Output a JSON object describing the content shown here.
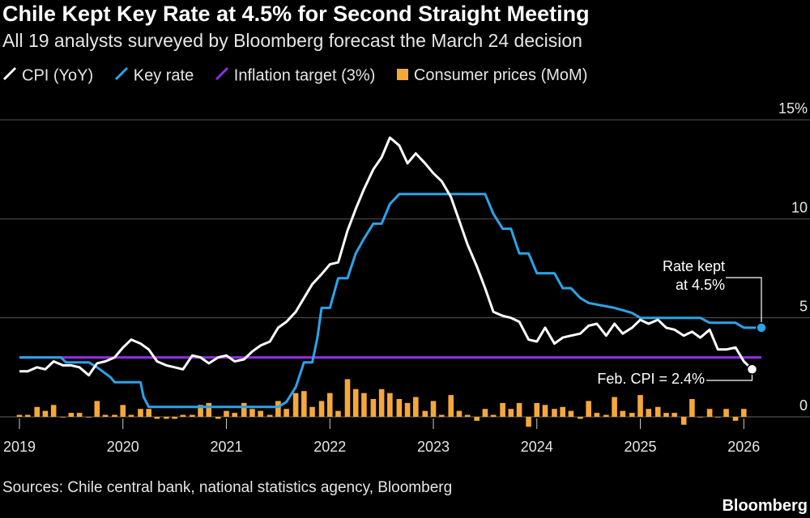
{
  "chart_data": {
    "type": "line",
    "title": "Chile Kept Key Rate at 4.5% for Second Straight Meeting",
    "subtitle": "All 19 analysts surveyed by Bloomberg forecast the March 24 decision",
    "legend": [
      {
        "name": "CPI (YoY)",
        "color": "#ffffff",
        "symbol": "line"
      },
      {
        "name": "Key rate",
        "color": "#2ba4e8",
        "symbol": "line"
      },
      {
        "name": "Inflation target (3%)",
        "color": "#8f2fe6",
        "symbol": "line"
      },
      {
        "name": "Consumer prices (MoM)",
        "color": "#f5a83a",
        "symbol": "square"
      }
    ],
    "x_ticks": [
      "2019",
      "2020",
      "2021",
      "2022",
      "2023",
      "2024",
      "2025",
      "2026"
    ],
    "y_ticks": [
      {
        "value": 0,
        "label": "0"
      },
      {
        "value": 5,
        "label": "5"
      },
      {
        "value": 10,
        "label": "10"
      },
      {
        "value": 15,
        "label": "15%"
      }
    ],
    "ylim": [
      -1.5,
      15
    ],
    "xlim": [
      2019.0,
      2026.3
    ],
    "series": [
      {
        "name": "CPI (YoY)",
        "color": "#ffffff",
        "points": [
          [
            2019.0,
            2.3
          ],
          [
            2019.08,
            2.3
          ],
          [
            2019.17,
            2.5
          ],
          [
            2019.25,
            2.4
          ],
          [
            2019.33,
            2.8
          ],
          [
            2019.42,
            2.6
          ],
          [
            2019.5,
            2.6
          ],
          [
            2019.58,
            2.5
          ],
          [
            2019.67,
            2.1
          ],
          [
            2019.75,
            2.7
          ],
          [
            2019.83,
            2.8
          ],
          [
            2019.92,
            3.0
          ],
          [
            2020.0,
            3.5
          ],
          [
            2020.08,
            3.9
          ],
          [
            2020.17,
            3.7
          ],
          [
            2020.25,
            3.4
          ],
          [
            2020.33,
            2.8
          ],
          [
            2020.42,
            2.6
          ],
          [
            2020.5,
            2.5
          ],
          [
            2020.58,
            2.4
          ],
          [
            2020.67,
            3.1
          ],
          [
            2020.75,
            3.0
          ],
          [
            2020.83,
            2.7
          ],
          [
            2020.92,
            3.0
          ],
          [
            2021.0,
            3.1
          ],
          [
            2021.08,
            2.8
          ],
          [
            2021.17,
            2.9
          ],
          [
            2021.25,
            3.3
          ],
          [
            2021.33,
            3.6
          ],
          [
            2021.42,
            3.8
          ],
          [
            2021.5,
            4.5
          ],
          [
            2021.58,
            4.8
          ],
          [
            2021.67,
            5.3
          ],
          [
            2021.75,
            6.0
          ],
          [
            2021.83,
            6.7
          ],
          [
            2021.92,
            7.2
          ],
          [
            2022.0,
            7.7
          ],
          [
            2022.08,
            7.8
          ],
          [
            2022.17,
            9.4
          ],
          [
            2022.25,
            10.5
          ],
          [
            2022.33,
            11.5
          ],
          [
            2022.42,
            12.5
          ],
          [
            2022.5,
            13.1
          ],
          [
            2022.58,
            14.1
          ],
          [
            2022.67,
            13.7
          ],
          [
            2022.75,
            12.8
          ],
          [
            2022.83,
            13.3
          ],
          [
            2022.92,
            12.8
          ],
          [
            2023.0,
            12.3
          ],
          [
            2023.08,
            11.9
          ],
          [
            2023.17,
            11.1
          ],
          [
            2023.25,
            9.9
          ],
          [
            2023.33,
            8.7
          ],
          [
            2023.42,
            7.6
          ],
          [
            2023.5,
            6.5
          ],
          [
            2023.58,
            5.3
          ],
          [
            2023.67,
            5.1
          ],
          [
            2023.75,
            5.0
          ],
          [
            2023.83,
            4.8
          ],
          [
            2023.92,
            3.9
          ],
          [
            2024.0,
            3.8
          ],
          [
            2024.08,
            4.5
          ],
          [
            2024.17,
            3.7
          ],
          [
            2024.25,
            4.0
          ],
          [
            2024.33,
            4.1
          ],
          [
            2024.42,
            4.2
          ],
          [
            2024.5,
            4.6
          ],
          [
            2024.58,
            4.7
          ],
          [
            2024.67,
            4.1
          ],
          [
            2024.75,
            4.7
          ],
          [
            2024.83,
            4.2
          ],
          [
            2024.92,
            4.5
          ],
          [
            2025.0,
            4.9
          ],
          [
            2025.08,
            4.7
          ],
          [
            2025.17,
            4.9
          ],
          [
            2025.25,
            4.5
          ],
          [
            2025.33,
            4.4
          ],
          [
            2025.42,
            4.1
          ],
          [
            2025.5,
            4.3
          ],
          [
            2025.58,
            4.0
          ],
          [
            2025.67,
            4.4
          ],
          [
            2025.75,
            3.4
          ],
          [
            2025.83,
            3.4
          ],
          [
            2025.92,
            3.5
          ],
          [
            2026.0,
            2.8
          ],
          [
            2026.08,
            2.4
          ]
        ]
      },
      {
        "name": "Key rate",
        "color": "#2ba4e8",
        "points": [
          [
            2019.0,
            3.0
          ],
          [
            2019.4,
            3.0
          ],
          [
            2019.45,
            2.75
          ],
          [
            2019.67,
            2.75
          ],
          [
            2019.75,
            2.5
          ],
          [
            2019.88,
            2.0
          ],
          [
            2019.92,
            1.75
          ],
          [
            2020.17,
            1.75
          ],
          [
            2020.2,
            1.0
          ],
          [
            2020.25,
            0.5
          ],
          [
            2021.5,
            0.5
          ],
          [
            2021.58,
            0.75
          ],
          [
            2021.67,
            1.5
          ],
          [
            2021.75,
            2.75
          ],
          [
            2021.83,
            2.75
          ],
          [
            2021.88,
            4.0
          ],
          [
            2021.92,
            5.5
          ],
          [
            2022.0,
            5.5
          ],
          [
            2022.08,
            7.0
          ],
          [
            2022.17,
            7.0
          ],
          [
            2022.25,
            8.25
          ],
          [
            2022.33,
            9.0
          ],
          [
            2022.42,
            9.75
          ],
          [
            2022.5,
            9.75
          ],
          [
            2022.58,
            10.75
          ],
          [
            2022.67,
            11.25
          ],
          [
            2023.5,
            11.25
          ],
          [
            2023.58,
            10.25
          ],
          [
            2023.67,
            9.5
          ],
          [
            2023.75,
            9.5
          ],
          [
            2023.83,
            8.25
          ],
          [
            2023.92,
            8.25
          ],
          [
            2024.0,
            7.25
          ],
          [
            2024.17,
            7.25
          ],
          [
            2024.25,
            6.5
          ],
          [
            2024.33,
            6.5
          ],
          [
            2024.42,
            6.0
          ],
          [
            2024.5,
            5.75
          ],
          [
            2024.75,
            5.5
          ],
          [
            2024.92,
            5.25
          ],
          [
            2025.0,
            5.0
          ],
          [
            2025.58,
            5.0
          ],
          [
            2025.67,
            4.75
          ],
          [
            2025.92,
            4.75
          ],
          [
            2026.0,
            4.5
          ],
          [
            2026.17,
            4.5
          ]
        ]
      },
      {
        "name": "Inflation target (3%)",
        "color": "#8f2fe6",
        "points": [
          [
            2019.0,
            3.0
          ],
          [
            2026.17,
            3.0
          ]
        ]
      }
    ],
    "bars": {
      "name": "Consumer prices (MoM)",
      "color": "#f5a83a",
      "points": [
        [
          2019.0,
          0.1
        ],
        [
          2019.08,
          0.1
        ],
        [
          2019.17,
          0.5
        ],
        [
          2019.25,
          0.3
        ],
        [
          2019.33,
          0.6
        ],
        [
          2019.42,
          0.0
        ],
        [
          2019.5,
          0.2
        ],
        [
          2019.58,
          0.2
        ],
        [
          2019.67,
          0.0
        ],
        [
          2019.75,
          0.8
        ],
        [
          2019.83,
          0.1
        ],
        [
          2019.92,
          0.1
        ],
        [
          2020.0,
          0.6
        ],
        [
          2020.08,
          0.1
        ],
        [
          2020.17,
          0.4
        ],
        [
          2020.25,
          0.4
        ],
        [
          2020.33,
          -0.1
        ],
        [
          2020.42,
          -0.1
        ],
        [
          2020.5,
          -0.1
        ],
        [
          2020.58,
          0.1
        ],
        [
          2020.67,
          0.1
        ],
        [
          2020.75,
          0.6
        ],
        [
          2020.83,
          0.7
        ],
        [
          2020.92,
          -0.1
        ],
        [
          2021.0,
          0.3
        ],
        [
          2021.08,
          0.2
        ],
        [
          2021.17,
          0.7
        ],
        [
          2021.25,
          0.4
        ],
        [
          2021.33,
          0.3
        ],
        [
          2021.42,
          0.1
        ],
        [
          2021.5,
          0.8
        ],
        [
          2021.58,
          0.4
        ],
        [
          2021.67,
          1.2
        ],
        [
          2021.75,
          1.3
        ],
        [
          2021.83,
          0.5
        ],
        [
          2021.92,
          0.8
        ],
        [
          2022.0,
          1.2
        ],
        [
          2022.08,
          0.3
        ],
        [
          2022.17,
          1.9
        ],
        [
          2022.25,
          1.4
        ],
        [
          2022.33,
          1.2
        ],
        [
          2022.42,
          0.9
        ],
        [
          2022.5,
          1.4
        ],
        [
          2022.58,
          1.2
        ],
        [
          2022.67,
          0.9
        ],
        [
          2022.75,
          0.7
        ],
        [
          2022.83,
          1.0
        ],
        [
          2022.92,
          0.3
        ],
        [
          2023.0,
          0.8
        ],
        [
          2023.08,
          0.1
        ],
        [
          2023.17,
          1.1
        ],
        [
          2023.25,
          0.3
        ],
        [
          2023.33,
          0.1
        ],
        [
          2023.42,
          -0.2
        ],
        [
          2023.5,
          0.4
        ],
        [
          2023.58,
          0.1
        ],
        [
          2023.67,
          0.7
        ],
        [
          2023.75,
          0.4
        ],
        [
          2023.83,
          0.7
        ],
        [
          2023.92,
          -0.5
        ],
        [
          2024.0,
          0.7
        ],
        [
          2024.08,
          0.6
        ],
        [
          2024.17,
          0.4
        ],
        [
          2024.25,
          0.5
        ],
        [
          2024.33,
          0.3
        ],
        [
          2024.42,
          -0.1
        ],
        [
          2024.5,
          0.8
        ],
        [
          2024.58,
          0.2
        ],
        [
          2024.67,
          0.1
        ],
        [
          2024.75,
          1.0
        ],
        [
          2024.83,
          0.3
        ],
        [
          2024.92,
          0.2
        ],
        [
          2025.0,
          1.1
        ],
        [
          2025.08,
          0.4
        ],
        [
          2025.17,
          0.5
        ],
        [
          2025.25,
          0.2
        ],
        [
          2025.33,
          0.2
        ],
        [
          2025.42,
          -0.4
        ],
        [
          2025.5,
          0.9
        ],
        [
          2025.58,
          0.0
        ],
        [
          2025.67,
          0.4
        ],
        [
          2025.75,
          0.0
        ],
        [
          2025.83,
          0.4
        ],
        [
          2025.92,
          -0.2
        ],
        [
          2026.0,
          0.4
        ]
      ]
    },
    "annotations": [
      {
        "label_lines": [
          "Rate kept",
          "at 4.5%"
        ],
        "x": 2026.17,
        "y": 4.5,
        "color": "#2ba4e8"
      },
      {
        "label_lines": [
          "Feb. CPI = 2.4%"
        ],
        "x": 2026.08,
        "y": 2.4,
        "color": "#ffffff"
      }
    ]
  },
  "source_text": "Sources: Chile central bank, national statistics agency, Bloomberg",
  "brand": "Bloomberg"
}
